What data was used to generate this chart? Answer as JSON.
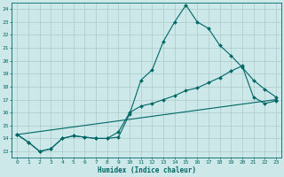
{
  "xlabel": "Humidex (Indice chaleur)",
  "background_color": "#cce8e8",
  "grid_color": "#aacccc",
  "line_color": "#006666",
  "xlim": [
    -0.5,
    23.5
  ],
  "ylim": [
    12.5,
    24.5
  ],
  "yticks": [
    13,
    14,
    15,
    16,
    17,
    18,
    19,
    20,
    21,
    22,
    23,
    24
  ],
  "xticks": [
    0,
    1,
    2,
    3,
    4,
    5,
    6,
    7,
    8,
    9,
    10,
    11,
    12,
    13,
    14,
    15,
    16,
    17,
    18,
    19,
    20,
    21,
    22,
    23
  ],
  "line1_x": [
    0,
    1,
    2,
    3,
    4,
    5,
    6,
    7,
    8,
    9,
    10,
    11,
    12,
    13,
    14,
    15,
    16,
    17,
    18,
    19,
    20,
    21,
    22,
    23
  ],
  "line1_y": [
    14.3,
    13.7,
    13.0,
    13.2,
    14.0,
    14.2,
    14.1,
    14.0,
    14.0,
    14.1,
    15.9,
    18.5,
    19.3,
    21.5,
    23.0,
    24.3,
    23.0,
    22.5,
    21.2,
    20.4,
    19.5,
    18.5,
    17.8,
    17.2
  ],
  "line2_x": [
    0,
    1,
    2,
    3,
    4,
    5,
    6,
    7,
    8,
    9,
    10,
    11,
    12,
    13,
    14,
    15,
    16,
    17,
    18,
    19,
    20,
    21,
    22,
    23
  ],
  "line2_y": [
    14.3,
    13.7,
    13.0,
    13.2,
    14.0,
    14.2,
    14.1,
    14.0,
    14.0,
    14.5,
    16.0,
    16.5,
    16.7,
    17.0,
    17.3,
    17.7,
    17.9,
    18.3,
    18.7,
    19.2,
    19.6,
    17.2,
    16.7,
    16.9
  ],
  "line3_x": [
    0,
    23
  ],
  "line3_y": [
    14.3,
    17.0
  ]
}
